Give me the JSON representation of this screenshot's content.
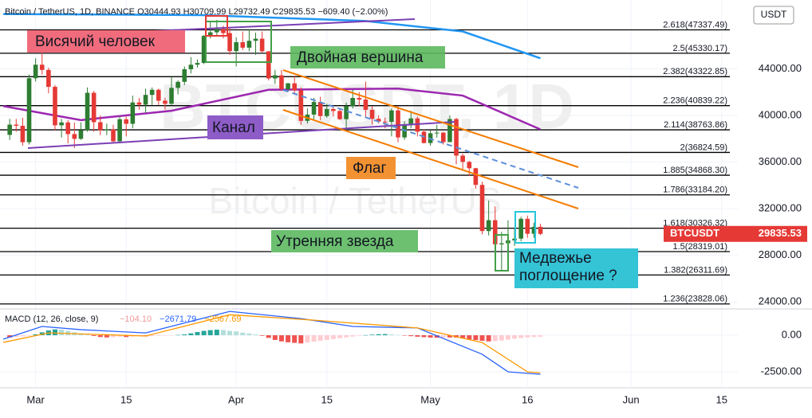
{
  "chart_data": {
    "type": "candlestick",
    "header": "Bitcoin / TetherUS, 1D, BINANCE  O30444.93  H30709.99  L29732.49  C29835.53  −609.40 (−2.00%)",
    "currency": "USDT",
    "watermark": "BTCUSDT, 1D",
    "watermark_sub": "Bitcoin / TetherUS",
    "price_tag": {
      "symbol": "BTCUSDT",
      "price": {
        "value": 29835.53,
        "label": "29835.53"
      }
    },
    "candles": {
      "open": [
        38330,
        39210,
        39110,
        37700,
        43190,
        44350,
        43900,
        42450,
        39150,
        39400,
        38400,
        37990,
        38740,
        41940,
        39420,
        38730,
        38810,
        37780,
        39670,
        39280,
        41110,
        40920,
        41760,
        42200,
        41260,
        41000,
        42360,
        42880,
        43960,
        44350,
        44500,
        46820,
        47130,
        47430,
        47060,
        45510,
        46280,
        45810,
        46400,
        46580,
        45500,
        43170,
        43440,
        42250,
        42750,
        42150,
        39530,
        40070,
        41150,
        39940,
        40550,
        40380,
        39680,
        40800,
        41500,
        41360,
        40480,
        39710,
        39470,
        39450,
        40430,
        38110,
        39240,
        39740,
        38600,
        37630,
        38470,
        38520,
        37710,
        39690,
        36550,
        36010,
        35470,
        34040,
        30080,
        31010,
        28940,
        29030,
        29280,
        29430,
        31130,
        29850,
        30444.93
      ],
      "high": [
        39700,
        39700,
        39800,
        43500,
        44900,
        45400,
        44100,
        42600,
        39700,
        39600,
        39400,
        39400,
        42400,
        42100,
        40000,
        39300,
        39200,
        39900,
        39900,
        41700,
        41500,
        42300,
        42400,
        42300,
        41500,
        43300,
        43000,
        44200,
        45000,
        44800,
        46900,
        48100,
        48200,
        47700,
        47600,
        46700,
        47200,
        47400,
        47100,
        47200,
        45500,
        43900,
        43900,
        42800,
        43400,
        42400,
        40600,
        41500,
        41600,
        41000,
        40700,
        40600,
        41100,
        42200,
        42000,
        42900,
        40800,
        40000,
        39800,
        40600,
        40800,
        39500,
        40400,
        39900,
        38800,
        38700,
        39200,
        38600,
        40000,
        39800,
        36700,
        36100,
        35500,
        34300,
        32700,
        32200,
        30000,
        31000,
        30300,
        31300,
        31400,
        30800,
        30709.99
      ],
      "low": [
        37900,
        38600,
        37400,
        37500,
        42900,
        43500,
        41900,
        38700,
        38100,
        37600,
        37200,
        37900,
        38600,
        38600,
        38300,
        38300,
        37600,
        37600,
        38200,
        38900,
        40500,
        40200,
        40900,
        40900,
        40500,
        40900,
        41800,
        42600,
        43600,
        44100,
        44400,
        46600,
        46900,
        46600,
        45200,
        44200,
        45600,
        45500,
        45200,
        45400,
        43000,
        42700,
        42100,
        42100,
        41900,
        39200,
        39300,
        39600,
        39600,
        39800,
        39900,
        39600,
        38600,
        40600,
        40800,
        39800,
        39200,
        39300,
        38900,
        38200,
        37700,
        37900,
        38900,
        38200,
        37600,
        37400,
        38100,
        37500,
        37700,
        35800,
        35300,
        34800,
        33700,
        29800,
        29700,
        27700,
        26700,
        28700,
        28800,
        29200,
        29500,
        29500,
        29732.49
      ],
      "close": [
        39210,
        39110,
        37700,
        43190,
        44350,
        43900,
        42450,
        39150,
        39400,
        38400,
        37990,
        38740,
        41940,
        39420,
        38730,
        38810,
        37780,
        39670,
        39280,
        41110,
        40920,
        41760,
        42200,
        41260,
        41000,
        42360,
        42880,
        43960,
        44350,
        44500,
        46820,
        47130,
        47430,
        47060,
        45510,
        46280,
        45810,
        46400,
        46580,
        45500,
        43170,
        43440,
        42250,
        42750,
        42150,
        39530,
        40070,
        41150,
        39940,
        40550,
        40380,
        39680,
        40800,
        41500,
        41360,
        40480,
        39710,
        39470,
        39450,
        40430,
        38110,
        39240,
        39740,
        38600,
        37630,
        38470,
        38520,
        37710,
        39690,
        36550,
        36010,
        35470,
        34040,
        30080,
        31010,
        28940,
        29030,
        29280,
        29430,
        31130,
        29850,
        30444.93,
        29835.53
      ]
    },
    "up_color": "#2e7d32",
    "down_color": "#e53935",
    "xlim": [
      -1.5,
      112.5
    ],
    "xticks": [
      {
        "value": 4,
        "label": "Mar"
      },
      {
        "value": 18,
        "label": "15"
      },
      {
        "value": 35,
        "label": "Apr"
      },
      {
        "value": 49,
        "label": "15"
      },
      {
        "value": 65,
        "label": "May"
      },
      {
        "value": 80,
        "label": "16"
      },
      {
        "value": 96,
        "label": "Jun"
      },
      {
        "value": 110,
        "label": "15"
      }
    ],
    "ylim": [
      23400,
      49900
    ],
    "yticks": [
      {
        "value": 44000,
        "label": "44000.00"
      },
      {
        "value": 40000,
        "label": "40000.00"
      },
      {
        "value": 36000,
        "label": "36000.00"
      },
      {
        "value": 32000,
        "label": "32000.00"
      },
      {
        "value": 28000,
        "label": "28000.00"
      },
      {
        "value": 24000,
        "label": "24000.00"
      }
    ],
    "fib_levels": [
      {
        "value": 47337.49,
        "label": "2.618(47337.49)"
      },
      {
        "value": 45330.17,
        "label": "2.5(45330.17)"
      },
      {
        "value": 43322.85,
        "label": "2.382(43322.85)"
      },
      {
        "value": 40839.22,
        "label": "2.236(40839.22)"
      },
      {
        "value": 38763.86,
        "label": "2.114(38763.86)"
      },
      {
        "value": 36824.59,
        "label": "2(36824.59)"
      },
      {
        "value": 34868.3,
        "label": "1.885(34868.30)"
      },
      {
        "value": 33184.2,
        "label": "1.786(33184.20)"
      },
      {
        "value": 30326.32,
        "label": "1.618(30326.32)"
      },
      {
        "value": 28319.01,
        "label": "1.5(28319.01)"
      },
      {
        "value": 26311.69,
        "label": "1.382(26311.69)"
      },
      {
        "value": 23828.06,
        "label": "1.236(23828.06)"
      }
    ],
    "moving_averages": [
      {
        "color": "#2196f3",
        "x": [
          -1,
          30,
          55,
          70,
          82
        ],
        "values": [
          48700,
          48600,
          48100,
          47200,
          44900
        ]
      },
      {
        "color": "#9c27b0",
        "x": [
          -1,
          11,
          25,
          40,
          60,
          70,
          82
        ],
        "values": [
          40800,
          39600,
          40400,
          42200,
          42300,
          41700,
          38800
        ]
      }
    ],
    "annotations": [
      "Висячий человек",
      "Двойная вершина",
      "Канал",
      "Флаг",
      "Утренняя звезда",
      "Медвежье поглощение ?"
    ],
    "macd": {
      "title": "MACD (12, 26, close, 9)",
      "legend": [
        {
          "value": -104.1,
          "label": "−104.10"
        },
        {
          "value": -2671.79,
          "label": "−2671.79"
        },
        {
          "value": -2567.69,
          "label": "−2567.69"
        }
      ],
      "legend_colors": [
        "#ef9a9a",
        "#2962ff",
        "#ff9800"
      ],
      "ylim": [
        -3480,
        1690
      ],
      "yticks": [
        {
          "value": 0,
          "label": "0.00"
        },
        {
          "value": -2500,
          "label": "-2500.00"
        }
      ],
      "histogram": [
        -150,
        -120,
        -80,
        -30,
        60,
        200,
        330,
        400,
        380,
        300,
        200,
        120,
        40,
        -50,
        -120,
        -150,
        -130,
        -100,
        -120,
        -90,
        -60,
        -80,
        -60,
        -40,
        -30,
        -10,
        20,
        60,
        130,
        220,
        300,
        350,
        380,
        360,
        300,
        260,
        180,
        120,
        60,
        -40,
        -180,
        -320,
        -420,
        -480,
        -520,
        -560,
        -500,
        -440,
        -380,
        -320,
        -260,
        -200,
        -150,
        -90,
        -40,
        10,
        40,
        70,
        80,
        60,
        30,
        -20,
        -60,
        -100,
        -130,
        -160,
        -170,
        -140,
        -150,
        -160,
        -220,
        -280,
        -330,
        -380,
        -420,
        -400,
        -360,
        -300,
        -240,
        -190,
        -150,
        -120,
        -104.1
      ],
      "macd_line": {
        "color": "#2962ff",
        "x": [
          -1,
          5,
          11,
          21,
          34,
          45,
          53,
          63,
          73,
          77,
          82
        ],
        "values": [
          -270,
          600,
          380,
          160,
          1630,
          1140,
          600,
          500,
          -1300,
          -2500,
          -2671.79
        ]
      },
      "signal_line": {
        "color": "#ff9800",
        "x": [
          -1,
          6,
          21,
          34,
          47,
          63,
          73,
          80,
          82
        ],
        "values": [
          -490,
          160,
          -50,
          1400,
          1030,
          500,
          -500,
          -2500,
          -2567.69
        ]
      }
    }
  }
}
